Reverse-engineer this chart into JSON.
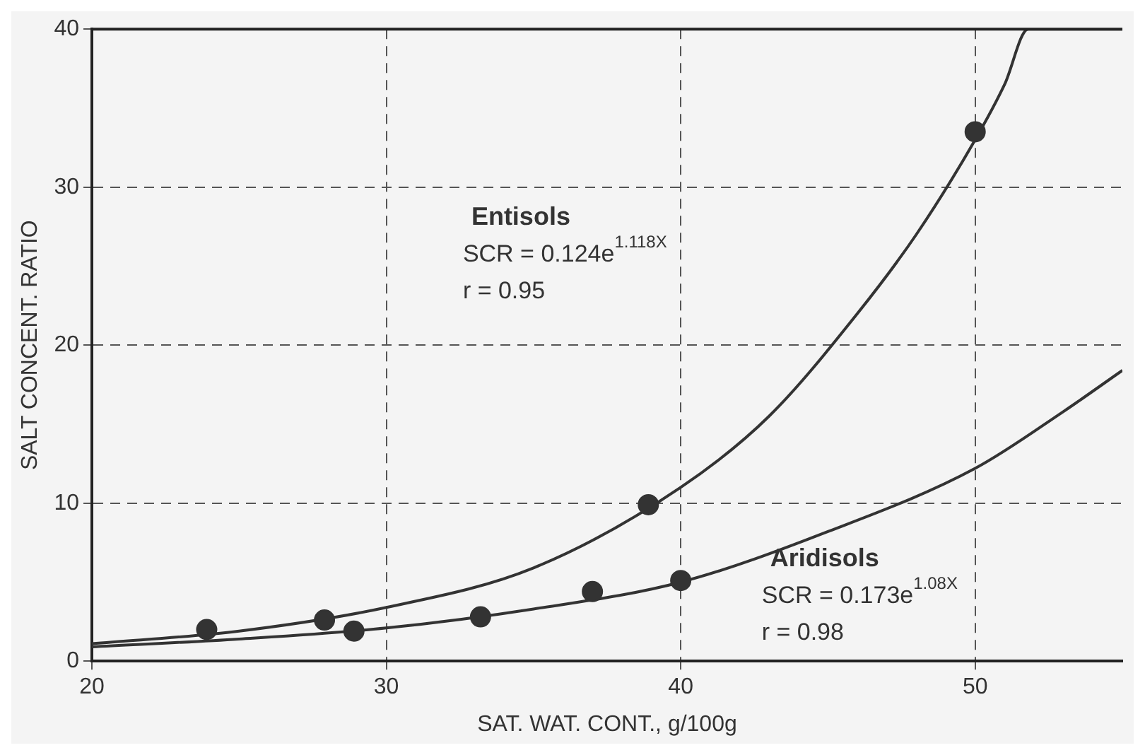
{
  "chart_data": {
    "type": "scatter",
    "xlabel": "SAT. WAT. CONT., g/100g",
    "ylabel": "SALT CONCENT. RATIO",
    "xlim": [
      20,
      55
    ],
    "xticks": [
      20,
      30,
      40,
      50
    ],
    "ylim": [
      0,
      40
    ],
    "yticks": [
      0,
      10,
      20,
      30,
      40
    ],
    "grid": true,
    "legend": false,
    "marker": "circle",
    "series": [
      {
        "color": "#333333",
        "x": [
          23.9,
          27.9,
          38.9,
          50
        ],
        "values": [
          2.0,
          2.6,
          9.9,
          33.5
        ]
      },
      {
        "color": "#333333",
        "x": [
          28.9,
          33.2,
          37.0,
          40.0
        ],
        "values": [
          1.9,
          2.8,
          4.4,
          5.1
        ]
      },
      {
        "type": "line",
        "color": "#333333",
        "marker": "none",
        "x": [
          20,
          25,
          30,
          35,
          40,
          43,
          46,
          48,
          50,
          51,
          51.8,
          55
        ],
        "values": [
          1.1,
          1.9,
          3.4,
          5.9,
          11.0,
          15.5,
          22,
          27,
          33,
          36.5,
          40,
          40
        ]
      },
      {
        "type": "line",
        "color": "#333333",
        "marker": "none",
        "x": [
          20,
          25,
          30,
          35,
          40,
          45,
          50,
          53,
          55
        ],
        "values": [
          0.9,
          1.4,
          2.1,
          3.3,
          5.0,
          8.2,
          12.2,
          15.8,
          18.4
        ]
      }
    ],
    "annotations": [
      "Entisols",
      "SCR = 0.124e$^{1.118X}$",
      "r = 0.95",
      "Aridisols",
      "SCR = 0.173e$^{1.08X}$",
      "r = 0.98"
    ]
  }
}
